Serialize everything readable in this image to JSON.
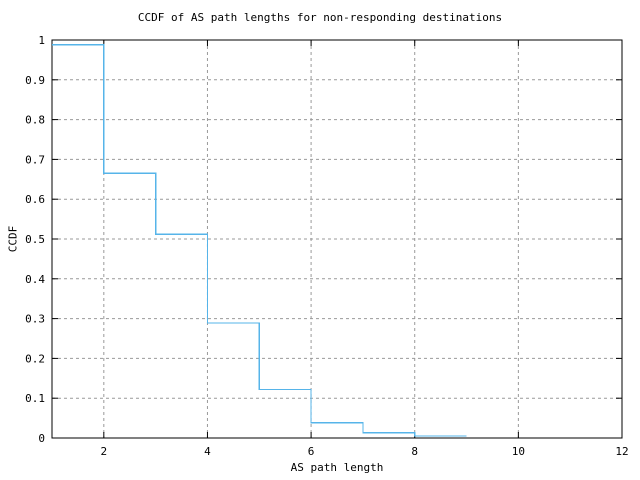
{
  "chart_data": {
    "type": "line",
    "subtype": "step-ccdf",
    "title": "CCDF of AS path lengths for non-responding destinations",
    "xlabel": "AS path length",
    "ylabel": "CCDF",
    "xlim": [
      1,
      12
    ],
    "ylim": [
      0,
      1
    ],
    "grid": true,
    "legend_position": "none",
    "x_ticks": [
      {
        "value": 2,
        "label": "2"
      },
      {
        "value": 4,
        "label": "4"
      },
      {
        "value": 6,
        "label": "6"
      },
      {
        "value": 8,
        "label": "8"
      },
      {
        "value": 10,
        "label": "10"
      },
      {
        "value": 12,
        "label": "12"
      }
    ],
    "y_ticks": [
      {
        "value": 0,
        "label": "0"
      },
      {
        "value": 0.1,
        "label": "0.1"
      },
      {
        "value": 0.2,
        "label": "0.2"
      },
      {
        "value": 0.3,
        "label": "0.3"
      },
      {
        "value": 0.4,
        "label": "0.4"
      },
      {
        "value": 0.5,
        "label": "0.5"
      },
      {
        "value": 0.6,
        "label": "0.6"
      },
      {
        "value": 0.7,
        "label": "0.7"
      },
      {
        "value": 0.8,
        "label": "0.8"
      },
      {
        "value": 0.9,
        "label": "0.9"
      },
      {
        "value": 1,
        "label": "1"
      }
    ],
    "x_gridlines": [
      2,
      4,
      6,
      8,
      10
    ],
    "y_gridlines": [
      0.1,
      0.2,
      0.3,
      0.4,
      0.5,
      0.6,
      0.7,
      0.8,
      0.9
    ],
    "series": [
      {
        "name": "ccdf-step-series",
        "step_x": [
          1,
          2,
          3,
          4,
          5,
          6,
          7,
          8
        ],
        "step_y": [
          0.988,
          0.665,
          0.512,
          0.289,
          0.122,
          0.038,
          0.013,
          0.005
        ],
        "end_x": 9
      }
    ],
    "colors": {
      "line": "#56b4e9",
      "axis": "#000000",
      "grid": "#999999",
      "background": "#ffffff",
      "text": "#000000"
    }
  }
}
